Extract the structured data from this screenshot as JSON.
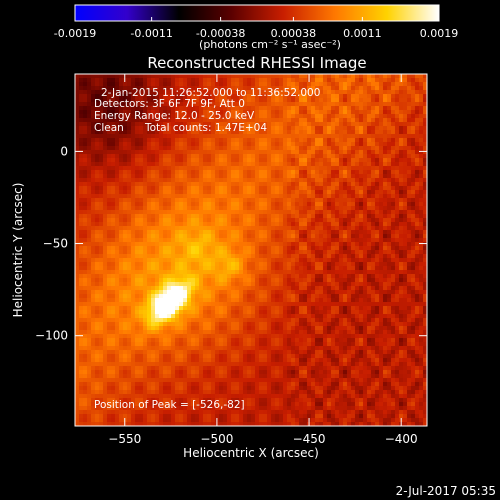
{
  "colorbar": {
    "tick_labels": [
      "-0.0019",
      "-0.0011",
      "-0.00038",
      "0.00038",
      "0.0011",
      "0.0019"
    ],
    "tick_values": [
      -0.0019,
      -0.0011,
      -0.00038,
      0.00038,
      0.0011,
      0.0019
    ],
    "range": [
      -0.0019,
      0.0019
    ],
    "units_text": "(photons cm⁻² s⁻¹ asec⁻²)",
    "colormap": [
      "#0000ff",
      "#3300cc",
      "#000000",
      "#5a0000",
      "#c81e00",
      "#ff7800",
      "#ffd200",
      "#ffffff"
    ]
  },
  "annotations": {
    "time_range": "2-Jan-2015 11:26:52.000 to 11:36:52.000",
    "detectors": "Detectors: 3F 6F 7F 9F, Att 0",
    "energy_range": "Energy Range: 12.0 - 25.0 keV",
    "method": "Clean",
    "total_counts": "Total counts: 1.47E+04",
    "peak_position": "Position of Peak = [-526,-82]"
  },
  "timestamp": "2-Jul-2017 05:35",
  "chart_data": {
    "type": "heatmap",
    "title": "Reconstructed RHESSI Image",
    "xlabel": "Heliocentric X (arcsec)",
    "ylabel": "Heliocentric Y (arcsec)",
    "xlim": [
      -577,
      -386
    ],
    "ylim": [
      -149,
      42
    ],
    "x_ticks": [
      -550,
      -500,
      -450,
      -400
    ],
    "y_ticks": [
      0,
      -50,
      -100
    ],
    "x_tick_labels": [
      "−550",
      "−500",
      "−450",
      "−400"
    ],
    "y_tick_labels": [
      "0",
      "−50",
      "−100"
    ],
    "peak": {
      "x": -526,
      "y": -82,
      "value": 0.0019
    },
    "value_range": [
      -0.0019,
      0.0019
    ]
  }
}
